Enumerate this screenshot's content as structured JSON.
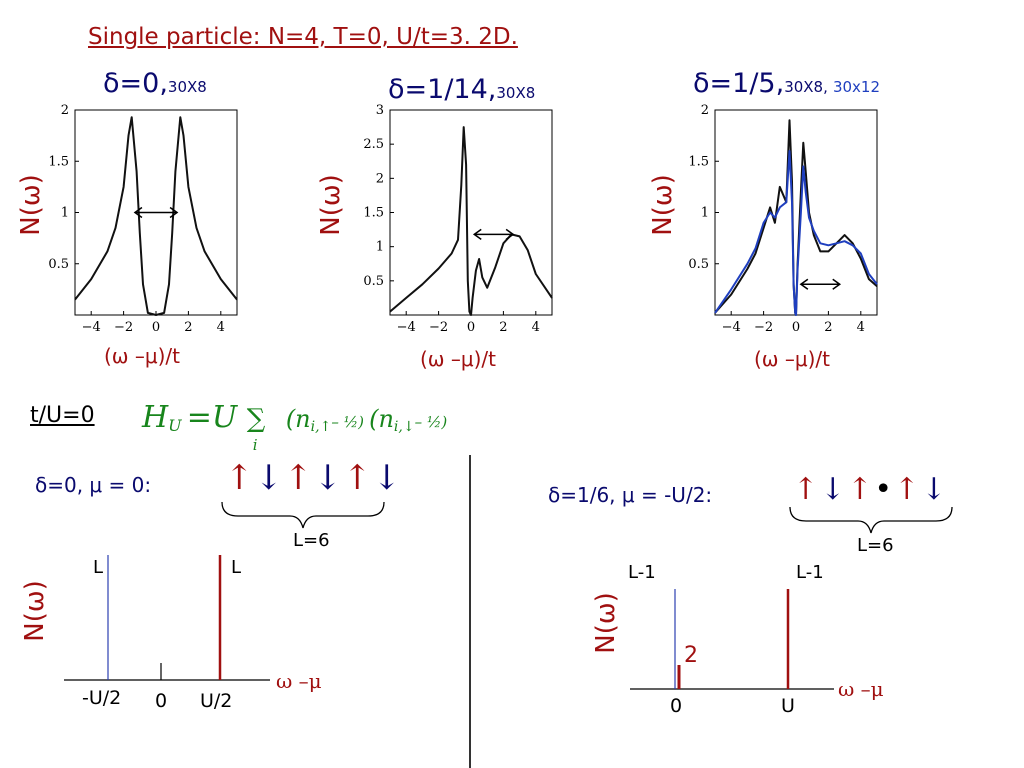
{
  "title": "Single particle: N=4, T=0, U/t=3. 2D.",
  "panels": [
    {
      "delta": "δ=0,",
      "size": "30X8",
      "size2": ""
    },
    {
      "delta": "δ=1/14,",
      "size": "30X8",
      "size2": ""
    },
    {
      "delta": "δ=1/5,",
      "size": "30X8,",
      "size2": "30x12"
    }
  ],
  "ylabel": "N(ω)",
  "xlabel": "(ω –μ)/t",
  "axis_x": "ω –μ",
  "limit_label": "t/U=0",
  "hamiltonian": {
    "H": "H",
    "H_sub": "U",
    "eq": " =U ",
    "sum": "∑",
    "sum_sub": "i",
    "f1": "(n",
    "f1_sub": "i,↑",
    "f1_tail": "– ½)",
    "f2": "(n",
    "f2_sub": "i,↓",
    "f2_tail": "– ½)"
  },
  "left_case": {
    "label": "δ=0, μ = 0:",
    "spins": [
      "↑",
      "↓",
      "↑",
      "↓",
      "↑",
      "↓"
    ],
    "L": "L=6",
    "peak_left": "L",
    "peak_right": "L",
    "ticks": [
      "-U/2",
      "0",
      "U/2"
    ]
  },
  "right_case": {
    "label": "δ=1/6, μ = -U/2:",
    "spins": [
      "↑",
      "↓",
      "↑",
      "•",
      "↑",
      "↓"
    ],
    "L": "L=6",
    "peak_left": "L-1",
    "peak_right": "L-1",
    "small_peak": "2",
    "ticks": [
      "0",
      "U"
    ]
  },
  "chart_data": [
    {
      "type": "line",
      "title": "δ=0, 30X8",
      "xlabel": "(ω –μ)/t",
      "ylabel": "N(ω)",
      "xlim": [
        -5,
        5
      ],
      "ylim": [
        0,
        2
      ],
      "xticks": [
        "−4",
        "−2",
        "0",
        "2",
        "4"
      ],
      "yticks": [
        "0.5",
        "1",
        "1.5",
        "2"
      ],
      "series": [
        {
          "x": [
            -5,
            -4,
            -3,
            -2.5,
            -2,
            -1.7,
            -1.5,
            -1.2,
            -1,
            -0.8,
            -0.5,
            0,
            0.5,
            0.8,
            1,
            1.2,
            1.5,
            1.7,
            2,
            2.5,
            3,
            4,
            5
          ],
          "y": [
            0.15,
            0.35,
            0.62,
            0.85,
            1.25,
            1.75,
            1.93,
            1.4,
            0.8,
            0.3,
            0.02,
            0.0,
            0.02,
            0.3,
            0.8,
            1.4,
            1.93,
            1.75,
            1.25,
            0.85,
            0.62,
            0.35,
            0.15
          ]
        }
      ]
    },
    {
      "type": "line",
      "title": "δ=1/14, 30X8",
      "xlabel": "(ω –μ)/t",
      "ylabel": "N(ω)",
      "xlim": [
        -5,
        5
      ],
      "ylim": [
        0,
        3
      ],
      "xticks": [
        "−4",
        "−2",
        "0",
        "2",
        "4"
      ],
      "yticks": [
        "0.5",
        "1",
        "1.5",
        "2",
        "2.5",
        "3"
      ],
      "series": [
        {
          "x": [
            -5,
            -4,
            -3,
            -2,
            -1.2,
            -0.8,
            -0.6,
            -0.45,
            -0.3,
            -0.2,
            -0.1,
            0,
            0.1,
            0.3,
            0.5,
            0.7,
            1,
            1.5,
            2,
            2.5,
            3,
            3.5,
            4,
            5
          ],
          "y": [
            0.05,
            0.25,
            0.45,
            0.68,
            0.9,
            1.1,
            1.9,
            2.75,
            2.2,
            0.5,
            0.05,
            0.0,
            0.25,
            0.65,
            0.82,
            0.55,
            0.4,
            0.7,
            1.05,
            1.18,
            1.15,
            0.95,
            0.6,
            0.25
          ]
        }
      ]
    },
    {
      "type": "line",
      "title": "δ=1/5, 30X8, 30x12",
      "xlabel": "(ω –μ)/t",
      "ylabel": "N(ω)",
      "xlim": [
        -5,
        5
      ],
      "ylim": [
        0,
        2
      ],
      "xticks": [
        "−4",
        "−2",
        "0",
        "2",
        "4"
      ],
      "yticks": [
        "0.5",
        "1",
        "1.5",
        "2"
      ],
      "series": [
        {
          "name": "30X8",
          "color": "#111111",
          "x": [
            -5,
            -4,
            -3,
            -2.5,
            -2,
            -1.6,
            -1.3,
            -1,
            -0.6,
            -0.4,
            -0.25,
            -0.15,
            -0.05,
            0,
            0.1,
            0.3,
            0.45,
            0.6,
            0.8,
            1.1,
            1.5,
            2,
            2.5,
            3,
            3.5,
            4,
            4.5,
            5
          ],
          "y": [
            0.02,
            0.2,
            0.45,
            0.6,
            0.85,
            1.05,
            0.9,
            1.25,
            1.1,
            1.9,
            1.3,
            0.3,
            0.02,
            0.0,
            0.5,
            1.2,
            1.68,
            1.4,
            1.0,
            0.78,
            0.62,
            0.62,
            0.7,
            0.78,
            0.7,
            0.55,
            0.35,
            0.28
          ]
        },
        {
          "name": "30x12",
          "color": "#1f3fbf",
          "x": [
            -5,
            -4,
            -3,
            -2.5,
            -2,
            -1.6,
            -1.3,
            -1,
            -0.6,
            -0.4,
            -0.25,
            -0.15,
            -0.05,
            0,
            0.1,
            0.3,
            0.45,
            0.6,
            0.8,
            1.1,
            1.5,
            2,
            2.5,
            3,
            3.5,
            4,
            4.5,
            5
          ],
          "y": [
            0.02,
            0.25,
            0.5,
            0.65,
            0.9,
            1.0,
            0.95,
            1.05,
            1.1,
            1.6,
            1.1,
            0.3,
            0.02,
            0.0,
            0.45,
            1.0,
            1.45,
            1.2,
            0.95,
            0.82,
            0.7,
            0.68,
            0.7,
            0.72,
            0.68,
            0.6,
            0.4,
            0.3
          ]
        }
      ]
    }
  ]
}
